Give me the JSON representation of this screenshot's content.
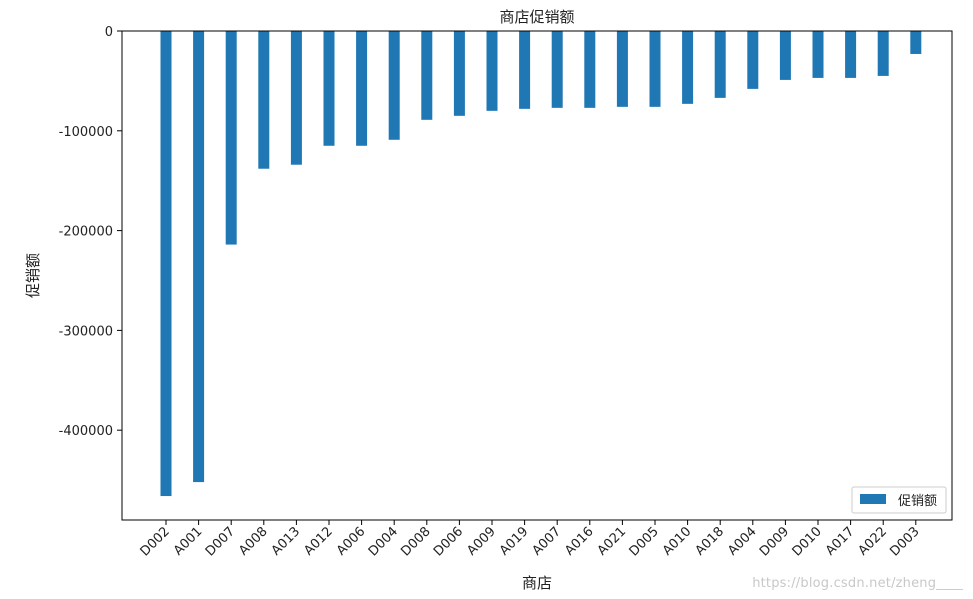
{
  "chart_data": {
    "type": "bar",
    "title": "商店促销额",
    "xlabel": "商店",
    "ylabel": "促销额",
    "categories": [
      "D002",
      "A001",
      "D007",
      "A008",
      "A013",
      "A012",
      "A006",
      "D004",
      "D008",
      "D006",
      "A009",
      "A019",
      "A007",
      "A016",
      "A021",
      "D005",
      "A010",
      "A018",
      "A004",
      "D009",
      "D010",
      "A017",
      "A022",
      "D003"
    ],
    "series": [
      {
        "name": "促销额",
        "values": [
          -466000,
          -452000,
          -214000,
          -138000,
          -134000,
          -115000,
          -115000,
          -109000,
          -89000,
          -85000,
          -80000,
          -78000,
          -77000,
          -77000,
          -76000,
          -76000,
          -73000,
          -67000,
          -58000,
          -49000,
          -47000,
          -47000,
          -45000,
          -23000
        ]
      }
    ],
    "ylim": [
      -490000,
      0
    ],
    "yticks": [
      0,
      -100000,
      -200000,
      -300000,
      -400000
    ],
    "grid": false,
    "legend_position": "bottom-right",
    "bar_color": "#1f77b4"
  },
  "watermark": "https://blog.csdn.net/zheng____"
}
